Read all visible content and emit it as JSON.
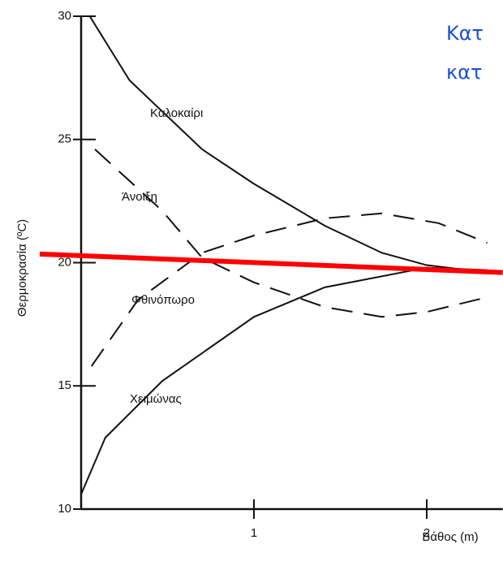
{
  "chart_data": {
    "type": "line",
    "notes": [
      "Κατ",
      "κατ"
    ],
    "xlabel": "Βάθος (m)",
    "ylabel": "Θερμοκρασία (ºC)",
    "xlim": [
      0,
      2.44
    ],
    "ylim": [
      10,
      30
    ],
    "xticks": [
      1,
      2
    ],
    "yticks": [
      10,
      15,
      20,
      25,
      30
    ],
    "series": [
      {
        "name": "Καλοκαίρι",
        "color": "#111111",
        "dash": false,
        "x": [
          0.05,
          0.28,
          0.7,
          1.0,
          1.41,
          1.74,
          2.0,
          2.35
        ],
        "values": [
          30,
          27.4,
          24.6,
          23.2,
          21.5,
          20.4,
          19.9,
          19.6
        ]
      },
      {
        "name": "Άνοιξη",
        "color": "#111111",
        "dash": true,
        "x": [
          0.08,
          0.47,
          0.7,
          1.0,
          1.41,
          1.74,
          2.0,
          2.35
        ],
        "values": [
          24.6,
          22.1,
          20.2,
          19.2,
          18.2,
          17.8,
          18.0,
          18.6
        ]
      },
      {
        "name": "Φθινόπωρο",
        "color": "#111111",
        "dash": true,
        "x": [
          0.06,
          0.33,
          0.7,
          1.0,
          1.41,
          1.74,
          2.07,
          2.35
        ],
        "values": [
          15.8,
          18.5,
          20.4,
          21.1,
          21.8,
          22.0,
          21.6,
          20.8
        ]
      },
      {
        "name": "Χειμώνας",
        "color": "#111111",
        "dash": false,
        "x": [
          0.0,
          0.14,
          0.47,
          1.0,
          1.41,
          2.0,
          2.35
        ],
        "values": [
          10.6,
          12.9,
          15.2,
          17.8,
          19.0,
          19.8,
          19.7
        ]
      },
      {
        "color": "#ff0000",
        "dash": false,
        "width": 6,
        "x": [
          -0.24,
          2.44
        ],
        "values": [
          20.35,
          19.6
        ]
      }
    ]
  }
}
